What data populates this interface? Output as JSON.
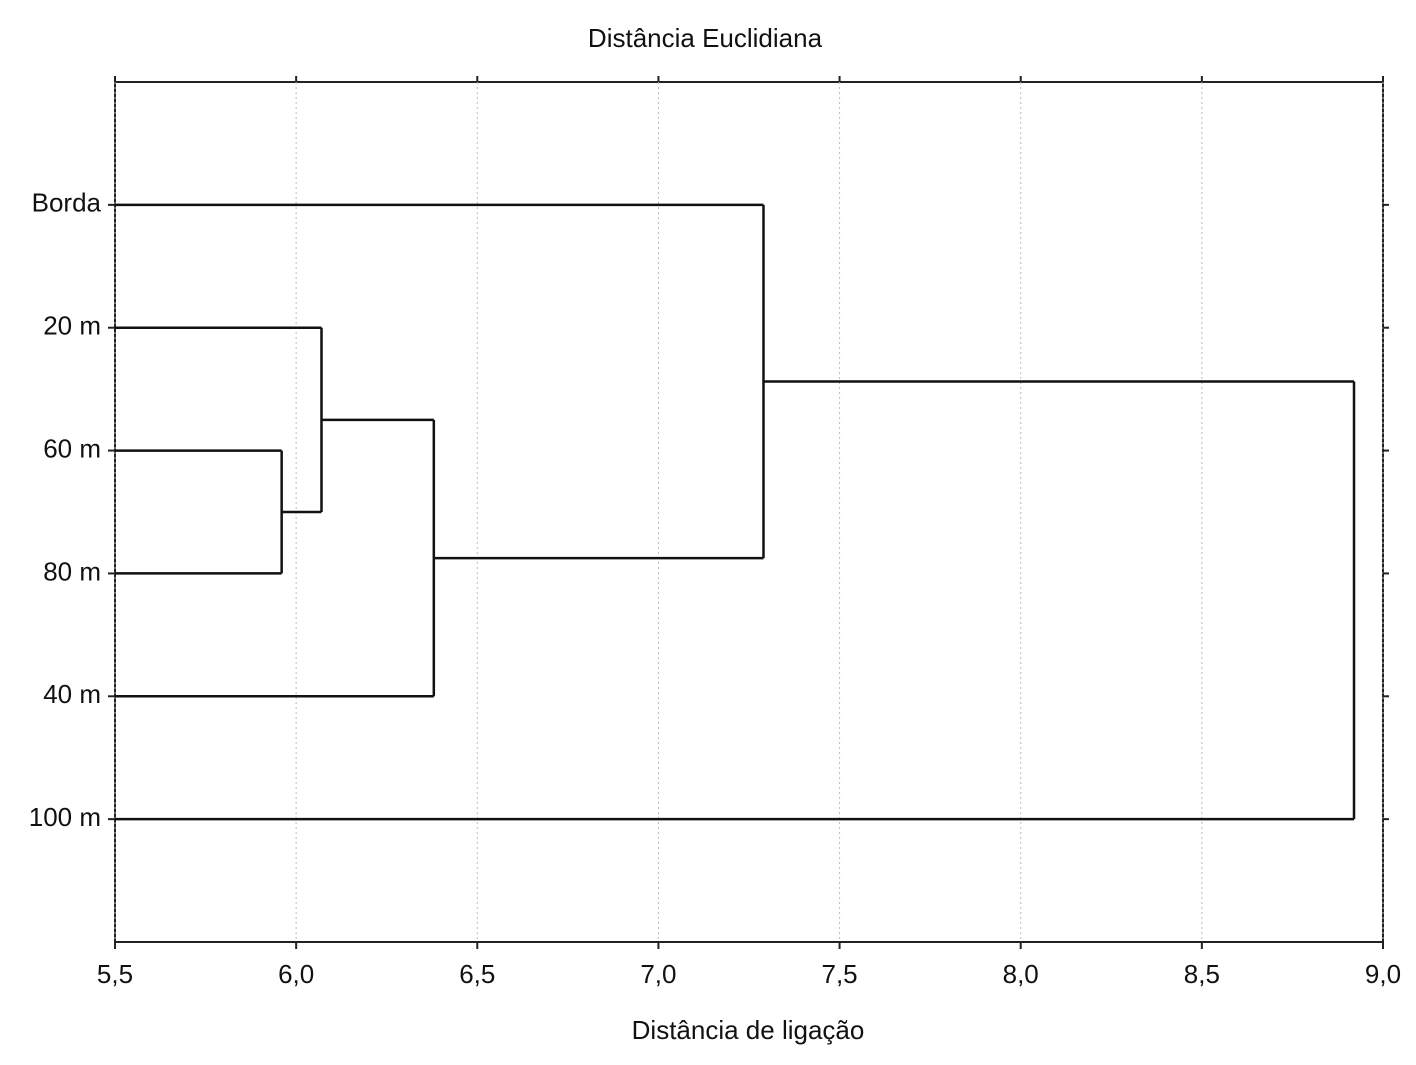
{
  "chart_data": {
    "type": "dendrogram",
    "title": "Distância Euclidiana",
    "x_label": "Distância de ligação",
    "xlim": [
      5.5,
      9.0
    ],
    "xticks": [
      {
        "value": 5.5,
        "label": "5,5"
      },
      {
        "value": 6.0,
        "label": "6,0"
      },
      {
        "value": 6.5,
        "label": "6,5"
      },
      {
        "value": 7.0,
        "label": "7,0"
      },
      {
        "value": 7.5,
        "label": "7,5"
      },
      {
        "value": 8.0,
        "label": "8,0"
      },
      {
        "value": 8.5,
        "label": "8,5"
      },
      {
        "value": 9.0,
        "label": "9,0"
      }
    ],
    "grid": true,
    "color": "#111111",
    "tree": {
      "height": 8.92,
      "children": [
        {
          "height": 7.29,
          "children": [
            "Borda",
            {
              "height": 6.38,
              "children": [
                {
                  "height": 6.07,
                  "children": [
                    "20 m",
                    {
                      "height": 5.96,
                      "children": [
                        "60 m",
                        "80 m"
                      ]
                    }
                  ]
                },
                "40 m"
              ]
            }
          ]
        },
        "100 m"
      ]
    }
  }
}
